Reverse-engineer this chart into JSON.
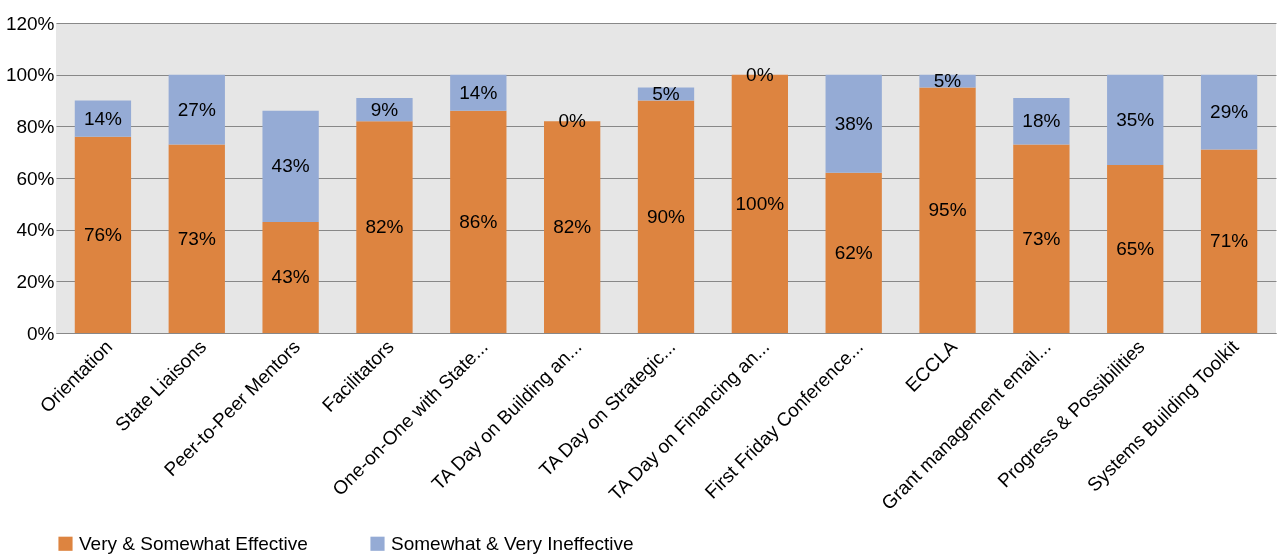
{
  "chart_data": {
    "type": "bar",
    "stacked": true,
    "categories": [
      "Orientation",
      "State Liaisons",
      "Peer-to-Peer Mentors",
      "Facilitators",
      "One-on-One with State...",
      "TA Day on Building an...",
      "TA Day on Strategic...",
      "TA Day on Financing an...",
      "First Friday Conference...",
      "ECCLA",
      "Grant management email...",
      "Progress & Possibilities",
      "Systems Building Toolkit"
    ],
    "series": [
      {
        "name": "Very & Somewhat Effective",
        "color": "#dd8440",
        "values": [
          76,
          73,
          43,
          82,
          86,
          82,
          90,
          100,
          62,
          95,
          73,
          65,
          71
        ],
        "value_labels": [
          "76%",
          "73%",
          "43%",
          "82%",
          "86%",
          "82%",
          "90%",
          "100%",
          "62%",
          "95%",
          "73%",
          "65%",
          "71%"
        ]
      },
      {
        "name": "Somewhat & Very Ineffective",
        "color": "#95abd5",
        "values": [
          14,
          27,
          43,
          9,
          14,
          0,
          5,
          0,
          38,
          5,
          18,
          35,
          29
        ],
        "value_labels": [
          "14%",
          "27%",
          "43%",
          "9%",
          "14%",
          "0%",
          "5%",
          "0%",
          "38%",
          "5%",
          "18%",
          "35%",
          "29%"
        ]
      }
    ],
    "ylim": [
      0,
      120
    ],
    "yticks": [
      {
        "value": 0,
        "label": "0%"
      },
      {
        "value": 20,
        "label": "20%"
      },
      {
        "value": 40,
        "label": "40%"
      },
      {
        "value": 60,
        "label": "60%"
      },
      {
        "value": 80,
        "label": "80%"
      },
      {
        "value": 100,
        "label": "100%"
      },
      {
        "value": 120,
        "label": "120%"
      }
    ],
    "grid": "y",
    "legend": "bottom"
  }
}
